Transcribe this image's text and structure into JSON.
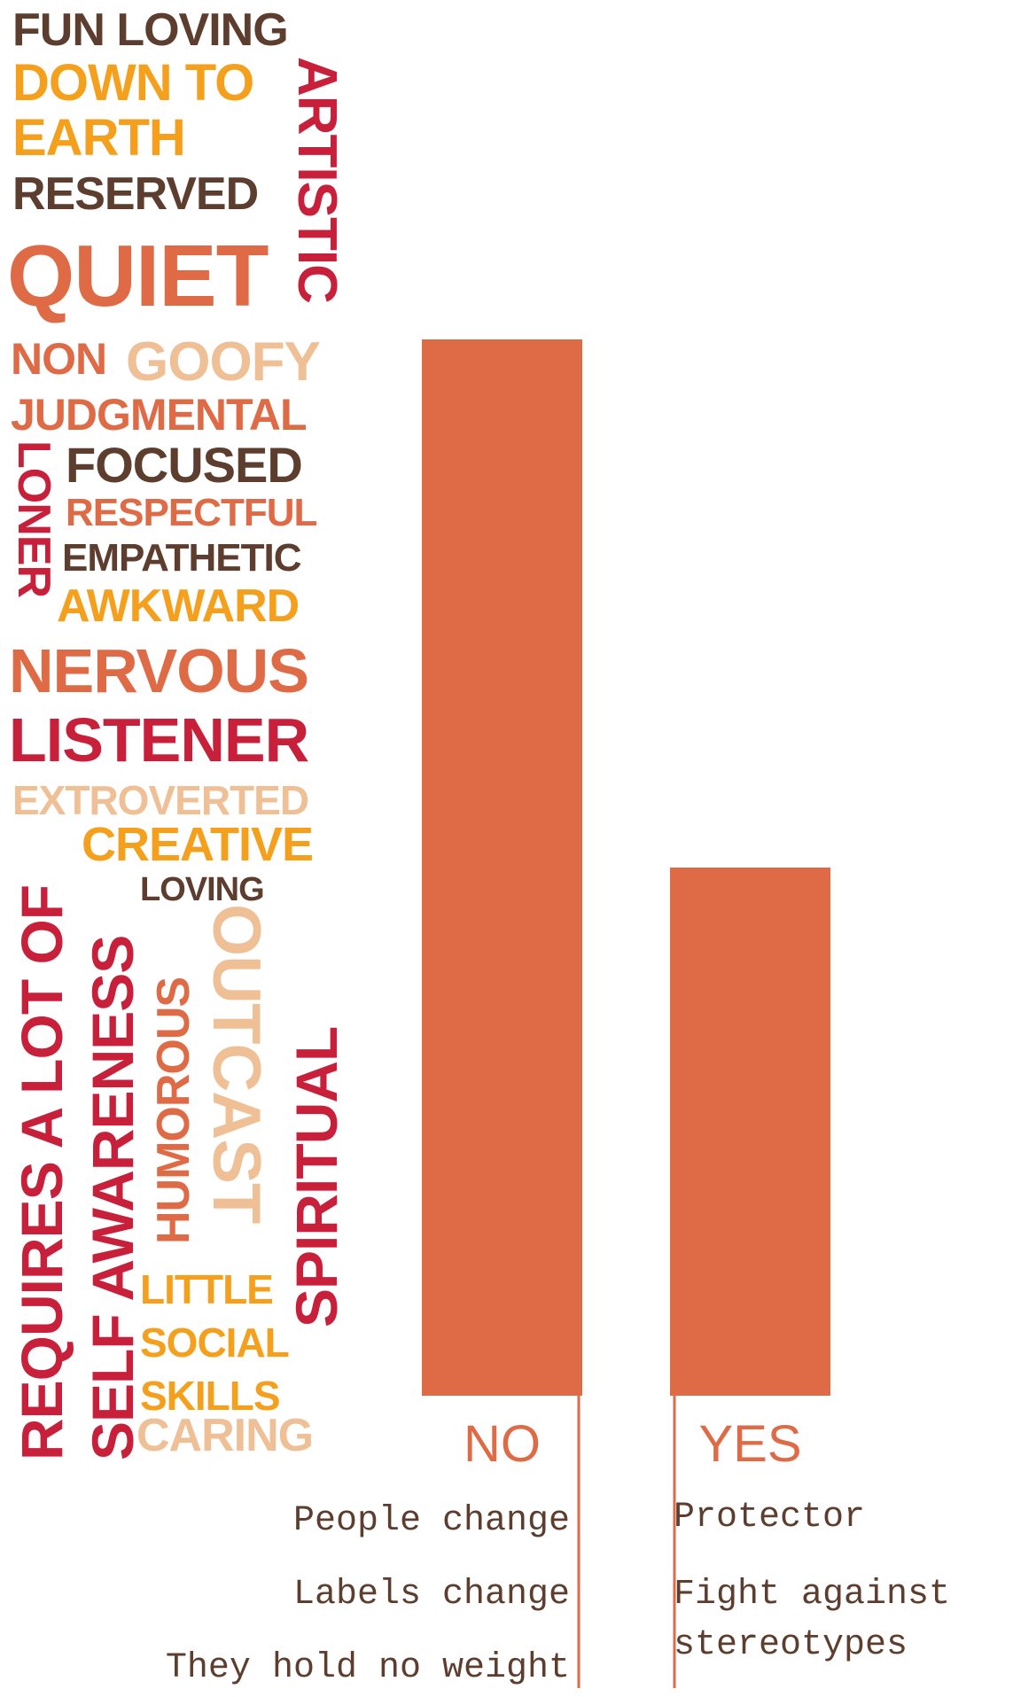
{
  "colors": {
    "brown": "#5c3d2e",
    "orange": "#f5a01d",
    "crimson": "#c8203b",
    "coral": "#df6b46",
    "peach": "#efbf95",
    "bar": "#df6b46"
  },
  "word_cloud": {
    "fun_loving": "FUN LOVING",
    "down_to": "DOWN TO",
    "earth": "EARTH",
    "reserved": "RESERVED",
    "artistic": "ARTISTIC",
    "quiet": "QUIET",
    "non": "NON",
    "goofy": "GOOFY",
    "judgmental": "JUDGMENTAL",
    "focused": "FOCUSED",
    "loner": "LONER",
    "respectful": "RESPECTFUL",
    "empathetic": "EMPATHETIC",
    "awkward": "AWKWARD",
    "nervous": "NERVOUS",
    "listener": "LISTENER",
    "extroverted": "EXTROVERTED",
    "creative": "CREATIVE",
    "loving": "LOVING",
    "requires": "REQUIRES A LOT OF",
    "self_awareness": "SELF AWARENESS",
    "humorous": "HUMOROUS",
    "outcast": "OUTCAST",
    "spiritual": "SPIRITUAL",
    "little": "LITTLE",
    "social": "SOCIAL",
    "skills": "SKILLS",
    "caring": "CARING"
  },
  "chart_data": {
    "type": "bar",
    "categories": [
      "NO",
      "YES"
    ],
    "values": [
      100,
      50
    ]
  },
  "annotations": {
    "no": [
      "People change",
      "Labels change",
      "They hold no weight"
    ],
    "yes": [
      "Protector",
      "Fight against",
      "stereotypes"
    ]
  }
}
